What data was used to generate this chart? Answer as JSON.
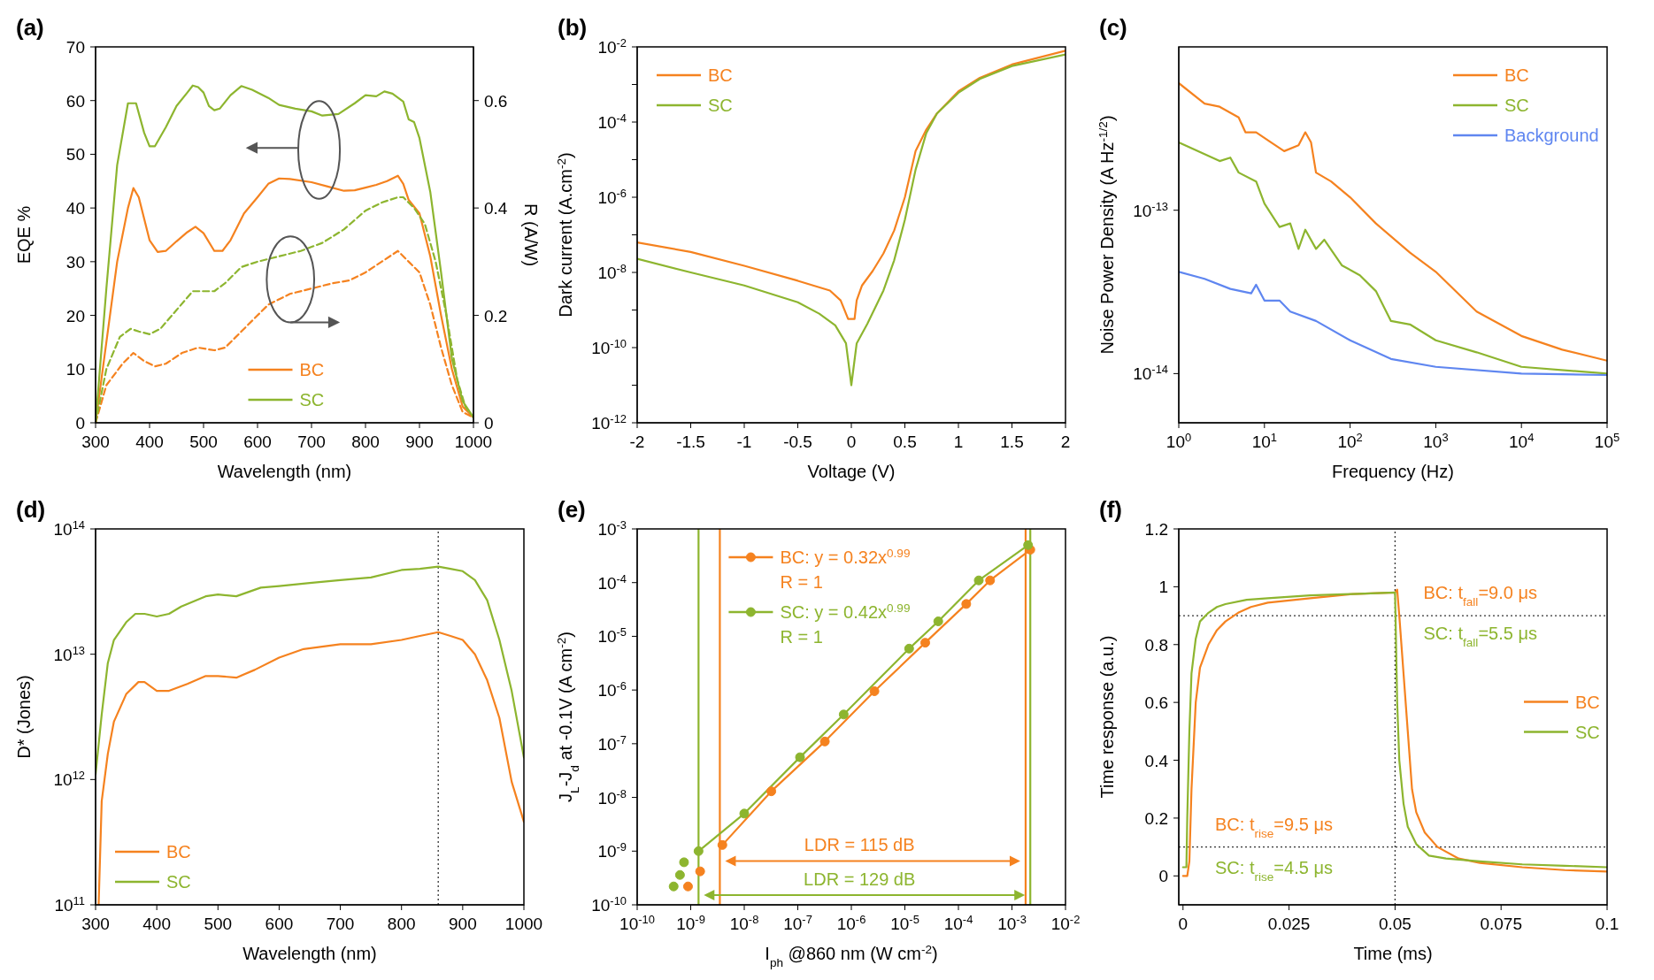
{
  "chart_data": [
    {
      "type": "line",
      "title": "(a)",
      "xlabel": "Wavelength (nm)",
      "ylabel": "EQE %",
      "y2label": "R (A/W)",
      "xlim": [
        300,
        1000
      ],
      "xticks": [
        300,
        400,
        500,
        600,
        700,
        800,
        900,
        1000
      ],
      "ylim": [
        0,
        70
      ],
      "yticks": [
        0,
        10,
        20,
        30,
        40,
        50,
        60,
        70
      ],
      "y2lim": [
        0,
        0.7
      ],
      "y2ticks": [
        0,
        0.2,
        0.4,
        0.6
      ],
      "legend": "bottom",
      "series": [
        {
          "name": "BC",
          "color": "#f5821f",
          "x": [
            300,
            320,
            340,
            360,
            370,
            380,
            400,
            415,
            430,
            450,
            470,
            485,
            500,
            520,
            535,
            550,
            575,
            600,
            620,
            640,
            660,
            700,
            730,
            760,
            780,
            800,
            820,
            840,
            860,
            870,
            880,
            900,
            920,
            940,
            960,
            980,
            1000
          ],
          "values": [
            0,
            15,
            30,
            40,
            43.7,
            42,
            34,
            31.8,
            32,
            33.8,
            35.5,
            36.5,
            35.3,
            32,
            32,
            34,
            39,
            42,
            44.5,
            45.5,
            45.4,
            44.8,
            44,
            43.2,
            43.3,
            43.8,
            44.3,
            45,
            46,
            44.5,
            41.5,
            39,
            31,
            20,
            10,
            3,
            1
          ]
        },
        {
          "name": "SC",
          "color": "#8db52f",
          "x": [
            300,
            320,
            340,
            360,
            375,
            390,
            400,
            410,
            430,
            450,
            470,
            480,
            490,
            500,
            510,
            520,
            530,
            550,
            570,
            590,
            620,
            640,
            670,
            700,
            720,
            750,
            780,
            800,
            820,
            835,
            850,
            870,
            880,
            890,
            900,
            920,
            940,
            960,
            980,
            1000
          ],
          "values": [
            0,
            25,
            48,
            59.5,
            59.5,
            54,
            51.5,
            51.5,
            55,
            59,
            61.5,
            62.8,
            62.5,
            61.5,
            59,
            58.2,
            58.5,
            61,
            62.7,
            62,
            60.5,
            59.2,
            58.5,
            58,
            57.2,
            57.5,
            59.5,
            61,
            60.8,
            61.7,
            61.3,
            59.8,
            56.5,
            56,
            53,
            43,
            28,
            12,
            4,
            1
          ]
        },
        {
          "color": "#f5821f",
          "axis": "y2",
          "line_style": "dashed",
          "x": [
            300,
            320,
            350,
            370,
            390,
            410,
            430,
            460,
            490,
            520,
            540,
            570,
            600,
            620,
            660,
            700,
            740,
            770,
            800,
            830,
            860,
            880,
            900,
            920,
            940,
            960,
            980,
            1000
          ],
          "values": [
            0,
            0.07,
            0.11,
            0.13,
            0.115,
            0.105,
            0.11,
            0.13,
            0.14,
            0.135,
            0.14,
            0.17,
            0.2,
            0.22,
            0.24,
            0.25,
            0.26,
            0.265,
            0.28,
            0.3,
            0.32,
            0.3,
            0.28,
            0.22,
            0.14,
            0.07,
            0.02,
            0.01
          ]
        },
        {
          "color": "#8db52f",
          "axis": "y2",
          "line_style": "dashed",
          "x": [
            300,
            320,
            345,
            365,
            380,
            400,
            420,
            450,
            480,
            500,
            520,
            540,
            570,
            600,
            640,
            680,
            720,
            760,
            800,
            830,
            860,
            870,
            890,
            910,
            930,
            950,
            970,
            985,
            1000
          ],
          "values": [
            0,
            0.1,
            0.16,
            0.175,
            0.17,
            0.165,
            0.175,
            0.21,
            0.245,
            0.245,
            0.245,
            0.26,
            0.29,
            0.3,
            0.31,
            0.32,
            0.335,
            0.36,
            0.395,
            0.41,
            0.42,
            0.42,
            0.4,
            0.37,
            0.3,
            0.2,
            0.08,
            0.03,
            0.01
          ]
        }
      ]
    },
    {
      "type": "line",
      "title": "(b)",
      "xlabel": "Voltage (V)",
      "ylabel": "Dark current (A.cm$^{-2}$)",
      "log": "y",
      "xlim": [
        -2,
        2
      ],
      "xticks": [
        -2,
        -1.5,
        -1,
        -0.5,
        0,
        0.5,
        1,
        1.5,
        2
      ],
      "ylim": [
        1e-12,
        0.01
      ],
      "yticks": [
        {
          "value": 1e-12,
          "label": "10$^{-12}$"
        },
        {
          "value": 1e-11,
          "label": null
        },
        {
          "value": 1e-10,
          "label": "10$^{-10}$"
        },
        {
          "value": 1e-09,
          "label": null
        },
        {
          "value": 1e-08,
          "label": "10$^{-8}$"
        },
        {
          "value": 1e-07,
          "label": null
        },
        {
          "value": 1e-06,
          "label": "10$^{-6}$"
        },
        {
          "value": 1e-05,
          "label": null
        },
        {
          "value": 0.0001,
          "label": "10$^{-4}$"
        },
        {
          "value": 0.001,
          "label": null
        },
        {
          "value": 0.01,
          "label": "10$^{-2}$"
        }
      ],
      "legend": "top left",
      "series": [
        {
          "name": "BC",
          "color": "#f5821f",
          "x": [
            -2,
            -1.5,
            -1,
            -0.5,
            -0.2,
            -0.1,
            -0.03,
            0.03,
            0.05,
            0.1,
            0.2,
            0.3,
            0.4,
            0.5,
            0.6,
            0.7,
            0.8,
            1,
            1.2,
            1.5,
            2
          ],
          "values": [
            6.3e-08,
            3.5e-08,
            1.5e-08,
            6e-09,
            3.3e-09,
            1.8e-09,
            5.8e-10,
            5.8e-10,
            1.8e-09,
            4.5e-09,
            1.1e-08,
            3.2e-08,
            1.3e-07,
            1e-06,
            1.7e-05,
            6.3e-05,
            0.00017,
            0.00066,
            0.0015,
            0.0034,
            0.0079
          ]
        },
        {
          "name": "SC",
          "color": "#8db52f",
          "x": [
            -2,
            -1.5,
            -1,
            -0.5,
            -0.3,
            -0.15,
            -0.05,
            0,
            0.05,
            0.15,
            0.3,
            0.4,
            0.5,
            0.6,
            0.7,
            0.8,
            1,
            1.2,
            1.5,
            2
          ],
          "values": [
            2.3e-08,
            1e-08,
            4.5e-09,
            1.6e-09,
            8e-10,
            3.9e-10,
            1.3e-10,
            1e-11,
            1.3e-10,
            4.3e-10,
            3.3e-09,
            2.1e-08,
            2.5e-07,
            5.4e-06,
            5.1e-05,
            0.00017,
            0.0006,
            0.0014,
            0.0031,
            0.0063
          ]
        }
      ]
    },
    {
      "type": "line",
      "title": "(c)",
      "xlabel": "Frequency (Hz)",
      "ylabel": "Noise Power Density (A Hz$^{-1/2}$)",
      "log": "xy",
      "xlim": [
        1,
        100000
      ],
      "xticks": [
        {
          "value": 1,
          "label": "10$^{0}$"
        },
        {
          "value": 10,
          "label": "10$^{1}$"
        },
        {
          "value": 100,
          "label": "10$^{2}$"
        },
        {
          "value": 1000,
          "label": "10$^{3}$"
        },
        {
          "value": 10000,
          "label": "10$^{4}$"
        },
        {
          "value": 100000,
          "label": "10$^{5}$"
        }
      ],
      "ylim": [
        5e-15,
        1e-12
      ],
      "yticks": [
        {
          "value": 1e-14,
          "label": "10$^{-14}$"
        },
        {
          "value": 1e-13,
          "label": "10$^{-13}$"
        }
      ],
      "legend": "top right",
      "series": [
        {
          "name": "BC",
          "color": "#f5821f",
          "x": [
            1,
            2,
            3,
            5,
            6,
            8,
            12,
            17,
            25,
            30,
            35,
            40,
            60,
            100,
            200,
            500,
            1000,
            3000,
            10000,
            30000,
            100000
          ],
          "values": [
            6e-13,
            4.5e-13,
            4.3e-13,
            3.7e-13,
            3e-13,
            3e-13,
            2.6e-13,
            2.3e-13,
            2.5e-13,
            3e-13,
            2.6e-13,
            1.7e-13,
            1.5e-13,
            1.2e-13,
            8.3e-14,
            5.5e-14,
            4.2e-14,
            2.4e-14,
            1.7e-14,
            1.4e-14,
            1.2e-14
          ]
        },
        {
          "name": "SC",
          "color": "#8db52f",
          "x": [
            1,
            3,
            4,
            5,
            8,
            10,
            15,
            20,
            25,
            30,
            40,
            50,
            80,
            130,
            200,
            300,
            500,
            1000,
            3000,
            10000,
            100000
          ],
          "values": [
            2.6e-13,
            2e-13,
            2.1e-13,
            1.7e-13,
            1.5e-13,
            1.1e-13,
            7.9e-14,
            8.3e-14,
            5.8e-14,
            7.6e-14,
            5.8e-14,
            6.6e-14,
            4.6e-14,
            4e-14,
            3.2e-14,
            2.1e-14,
            2e-14,
            1.6e-14,
            1.35e-14,
            1.1e-14,
            1e-14
          ]
        },
        {
          "name": "Background",
          "color": "#5f86f0",
          "x": [
            1,
            2,
            4,
            7,
            8,
            10,
            15,
            20,
            40,
            100,
            300,
            1000,
            10000,
            100000
          ],
          "values": [
            4.2e-14,
            3.8e-14,
            3.3e-14,
            3.1e-14,
            3.5e-14,
            2.8e-14,
            2.8e-14,
            2.4e-14,
            2.1e-14,
            1.6e-14,
            1.23e-14,
            1.1e-14,
            1e-14,
            9.8e-15
          ]
        }
      ]
    },
    {
      "type": "line",
      "title": "(d)",
      "xlabel": "Wavelength (nm)",
      "ylabel": "D* (Jones)",
      "log": "y",
      "xlim": [
        300,
        1000
      ],
      "xticks": [
        300,
        400,
        500,
        600,
        700,
        800,
        900,
        1000
      ],
      "ylim": [
        100000000000.0,
        100000000000000.0
      ],
      "yticks": [
        {
          "value": 100000000000.0,
          "label": "10$^{11}$"
        },
        {
          "value": 1000000000000.0,
          "label": "10$^{12}$"
        },
        {
          "value": 10000000000000.0,
          "label": "10$^{13}$"
        },
        {
          "value": 100000000000000.0,
          "label": "10$^{14}$"
        }
      ],
      "legend": "bottom left",
      "ref_lines": [
        {
          "axis": "x",
          "value": 860,
          "color": "#333333",
          "line_style": "dotted"
        }
      ],
      "series": [
        {
          "name": "BC",
          "color": "#f5821f",
          "x": [
            305,
            310,
            320,
            330,
            350,
            370,
            380,
            400,
            420,
            450,
            480,
            500,
            530,
            560,
            600,
            640,
            700,
            750,
            800,
            830,
            860,
            880,
            900,
            920,
            940,
            960,
            980,
            1000
          ],
          "values": [
            100000000000.0,
            670000000000.0,
            1600000000000.0,
            2900000000000.0,
            4800000000000.0,
            6000000000000.0,
            6000000000000.0,
            5100000000000.0,
            5100000000000.0,
            5800000000000.0,
            6700000000000.0,
            6700000000000.0,
            6500000000000.0,
            7500000000000.0,
            9400000000000.0,
            11000000000000.0,
            12000000000000.0,
            12000000000000.0,
            13000000000000.0,
            14000000000000.0,
            15000000000000.0,
            14000000000000.0,
            13000000000000.0,
            10000000000000.0,
            6200000000000.0,
            3100000000000.0,
            960000000000.0,
            460000000000.0
          ]
        },
        {
          "name": "SC",
          "color": "#8db52f",
          "x": [
            300,
            310,
            320,
            330,
            350,
            365,
            380,
            400,
            420,
            440,
            480,
            500,
            530,
            570,
            600,
            650,
            700,
            750,
            800,
            830,
            860,
            880,
            900,
            920,
            940,
            960,
            980,
            1000
          ],
          "values": [
            1100000000000.0,
            3300000000000.0,
            8500000000000.0,
            13000000000000.0,
            18000000000000.0,
            21000000000000.0,
            21000000000000.0,
            20000000000000.0,
            21000000000000.0,
            24000000000000.0,
            29000000000000.0,
            30000000000000.0,
            29000000000000.0,
            34000000000000.0,
            35000000000000.0,
            37000000000000.0,
            39000000000000.0,
            41000000000000.0,
            47000000000000.0,
            48000000000000.0,
            50000000000000.0,
            48000000000000.0,
            46000000000000.0,
            39000000000000.0,
            27000000000000.0,
            13000000000000.0,
            5100000000000.0,
            1500000000000.0
          ]
        }
      ]
    },
    {
      "type": "line",
      "title": "(e)",
      "xlabel": "I$_{ph}$ @860 nm (W cm$^{-2}$)",
      "ylabel": "J$_{L}$-J$_{d}$ at -0.1V (A cm$^{-2}$)",
      "log": "xy",
      "marker": "circle",
      "xlim": [
        1e-10,
        0.01
      ],
      "xticks": [
        {
          "value": 1e-10,
          "label": "10$^{-10}$"
        },
        {
          "value": 1e-09,
          "label": "10$^{-9}$"
        },
        {
          "value": 1e-08,
          "label": "10$^{-8}$"
        },
        {
          "value": 1e-07,
          "label": "10$^{-7}$"
        },
        {
          "value": 1e-06,
          "label": "10$^{-6}$"
        },
        {
          "value": 1e-05,
          "label": "10$^{-5}$"
        },
        {
          "value": 0.0001,
          "label": "10$^{-4}$"
        },
        {
          "value": 0.001,
          "label": "10$^{-3}$"
        },
        {
          "value": 0.01,
          "label": "10$^{-2}$"
        }
      ],
      "ylim": [
        1e-10,
        0.001
      ],
      "yticks": [
        {
          "value": 1e-10,
          "label": "10$^{-10}$"
        },
        {
          "value": 1e-09,
          "label": "10$^{-9}$"
        },
        {
          "value": 1e-08,
          "label": "10$^{-8}$"
        },
        {
          "value": 1e-07,
          "label": "10$^{-7}$"
        },
        {
          "value": 1e-06,
          "label": "10$^{-6}$"
        },
        {
          "value": 1e-05,
          "label": "10$^{-5}$"
        },
        {
          "value": 0.0001,
          "label": "10$^{-4}$"
        },
        {
          "value": 0.001,
          "label": "10$^{-3}$"
        }
      ],
      "legend": "top left",
      "ref_lines": [
        {
          "axis": "x",
          "value": 3.5e-09,
          "color": "#f5821f"
        },
        {
          "axis": "x",
          "value": 0.0018,
          "color": "#f5821f"
        },
        {
          "axis": "x",
          "value": 1.4e-09,
          "color": "#8db52f"
        },
        {
          "axis": "x",
          "value": 0.0022,
          "color": "#8db52f"
        }
      ],
      "annotations": [
        "LDR = 115 dB",
        "LDR = 129 dB",
        "R = 1",
        "R = 1"
      ],
      "series": [
        {
          "name": "BC: y = 0.32x$^{0.99}$",
          "color": "#f5821f",
          "x": [
            3.9e-09,
            3.2e-08,
            3.2e-07,
            2.7e-06,
            2.4e-05,
            0.00014,
            0.00039,
            0.0022
          ],
          "values": [
            1.3e-09,
            1.3e-08,
            1.1e-07,
            9.5e-07,
            7.6e-06,
            4e-05,
            0.00011,
            0.00041
          ]
        },
        {
          "type": "scatter",
          "color": "#f5821f",
          "x": [
            1.5e-09,
            8.9e-10
          ],
          "values": [
            4.2e-10,
            2.2e-10
          ]
        },
        {
          "name": "SC: y = 0.42x$^{0.99}$",
          "color": "#8db52f",
          "x": [
            1.4e-09,
            1e-08,
            1.1e-07,
            7.2e-07,
            1.2e-05,
            4.2e-05,
            0.00024,
            0.002
          ],
          "values": [
            1e-09,
            5e-09,
            5.6e-08,
            3.5e-07,
            5.9e-06,
            1.9e-05,
            0.00011,
            0.0005
          ]
        },
        {
          "type": "scatter",
          "color": "#8db52f",
          "x": [
            7.5e-10,
            6.3e-10,
            4.8e-10
          ],
          "values": [
            6.2e-10,
            3.6e-10,
            2.2e-10
          ]
        }
      ]
    },
    {
      "type": "line",
      "title": "(f)",
      "xlabel": "Time (ms)",
      "ylabel": "Time response (a.u.)",
      "xlim": [
        -0.001,
        0.1
      ],
      "xticks": [
        0,
        0.025,
        0.05,
        0.075,
        0.1
      ],
      "ylim": [
        -0.1,
        1.2
      ],
      "yticks": [
        0,
        0.2,
        0.4,
        0.6,
        0.8,
        1,
        1.2
      ],
      "legend": "right",
      "ref_lines": [
        {
          "axis": "y",
          "value": 0.9,
          "color": "#333333",
          "line_style": "dotted"
        },
        {
          "axis": "y",
          "value": 0.1,
          "color": "#333333",
          "line_style": "dotted"
        },
        {
          "axis": "x",
          "value": 0.05,
          "color": "#333333",
          "line_style": "dotted"
        }
      ],
      "annotations": [
        "BC: t$_{fall}$=9.0 μs",
        "SC: t$_{fall}$=5.5 μs",
        "BC: t$_{rise}$=9.5 μs",
        "SC: t$_{rise}$=4.5 μs"
      ],
      "series": [
        {
          "name": "BC",
          "color": "#f5821f",
          "x": [
            0,
            0.001,
            0.0015,
            0.002,
            0.003,
            0.004,
            0.006,
            0.008,
            0.01,
            0.013,
            0.016,
            0.02,
            0.03,
            0.04,
            0.05,
            0.0505,
            0.051,
            0.052,
            0.053,
            0.054,
            0.055,
            0.057,
            0.06,
            0.065,
            0.07,
            0.08,
            0.09,
            0.1
          ],
          "values": [
            0,
            0,
            0.05,
            0.3,
            0.6,
            0.72,
            0.8,
            0.85,
            0.88,
            0.91,
            0.93,
            0.945,
            0.96,
            0.975,
            0.98,
            0.99,
            0.9,
            0.7,
            0.5,
            0.3,
            0.22,
            0.15,
            0.1,
            0.06,
            0.045,
            0.03,
            0.02,
            0.015
          ]
        },
        {
          "name": "SC",
          "color": "#8db52f",
          "x": [
            0,
            0.0008,
            0.001,
            0.0015,
            0.002,
            0.003,
            0.004,
            0.006,
            0.008,
            0.01,
            0.015,
            0.02,
            0.03,
            0.04,
            0.05,
            0.0505,
            0.051,
            0.052,
            0.053,
            0.055,
            0.058,
            0.062,
            0.07,
            0.08,
            0.09,
            0.1
          ],
          "values": [
            0.03,
            0.03,
            0.2,
            0.5,
            0.7,
            0.82,
            0.88,
            0.91,
            0.93,
            0.94,
            0.955,
            0.96,
            0.97,
            0.975,
            0.98,
            0.6,
            0.4,
            0.25,
            0.17,
            0.11,
            0.07,
            0.06,
            0.05,
            0.04,
            0.035,
            0.03
          ]
        }
      ]
    }
  ]
}
